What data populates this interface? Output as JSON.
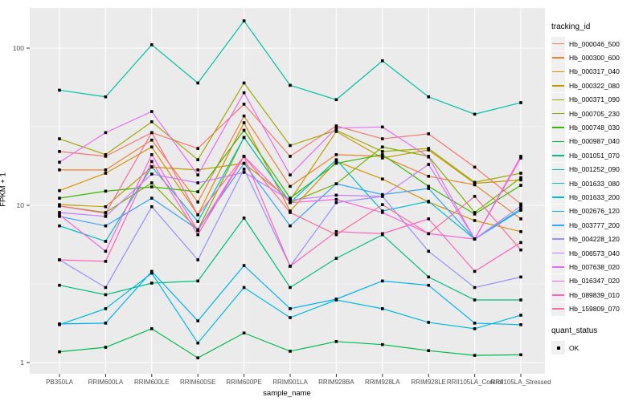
{
  "chart_data": {
    "type": "line",
    "title": "",
    "xlabel": "sample_name",
    "ylabel": "FPKM + 1",
    "y_scale": "log10",
    "y_ticks": [
      "1",
      "10",
      "100"
    ],
    "ylim": [
      0.85,
      180
    ],
    "grid": true,
    "legend_position": "right",
    "point_shape": "square",
    "point_color": "#000000",
    "categories": [
      "PB350LA",
      "RRIM600LA",
      "RRIM600LE",
      "RRIM600SE",
      "RRIM600PE",
      "RRIM901LA",
      "RRIM928BA",
      "RRIM928LA",
      "RRIM928LE",
      "RRII105LA_Control",
      "RRII105LA_Stressed"
    ],
    "legend": {
      "color_title": "tracking_id",
      "shape_title": "quant_status",
      "shape_items": [
        {
          "label": "OK",
          "shape": "square",
          "color": "#000000"
        }
      ]
    },
    "series": [
      {
        "name": "Hb_000046_500",
        "color": "#F8766D",
        "values": [
          22,
          20.5,
          29,
          23,
          44,
          20.5,
          32,
          26.5,
          28.5,
          17.5,
          10.2
        ]
      },
      {
        "name": "Hb_000300_600",
        "color": "#EA8331",
        "values": [
          16.8,
          16.8,
          26,
          10.5,
          37,
          13.2,
          21,
          20.5,
          15.3,
          13.5,
          8.2
        ]
      },
      {
        "name": "Hb_000317_040",
        "color": "#D89000",
        "values": [
          12.4,
          16,
          23.5,
          8.7,
          33.5,
          9.2,
          19,
          14.7,
          10.5,
          8.0,
          6.8
        ]
      },
      {
        "name": "Hb_000322_080",
        "color": "#C09B00",
        "values": [
          10.1,
          9.8,
          17.5,
          16.8,
          18.5,
          10.8,
          29.5,
          20,
          22.5,
          13.8,
          14.5
        ]
      },
      {
        "name": "Hb_000371_090",
        "color": "#A3A500",
        "values": [
          26.5,
          21,
          34,
          19.5,
          60,
          24,
          30,
          22,
          23,
          14,
          16
        ]
      },
      {
        "name": "Hb_000705_230",
        "color": "#7CAE00",
        "values": [
          9.9,
          9.0,
          13.9,
          7.0,
          27,
          10.4,
          13.7,
          23.5,
          20.5,
          9.0,
          15
        ]
      },
      {
        "name": "Hb_000748_030",
        "color": "#39B600",
        "values": [
          11.1,
          12.3,
          13.1,
          12.2,
          30,
          11.1,
          18.5,
          21,
          13.2,
          8.8,
          13.4
        ]
      },
      {
        "name": "Hb_000987_040",
        "color": "#00BB4E",
        "values": [
          1.17,
          1.25,
          1.64,
          1.07,
          1.54,
          1.18,
          1.36,
          1.3,
          1.19,
          1.11,
          1.12
        ]
      },
      {
        "name": "Hb_001051_070",
        "color": "#00BF7D",
        "values": [
          3.1,
          2.7,
          3.2,
          3.3,
          8.3,
          3.0,
          4.6,
          6.5,
          3.5,
          2.5,
          2.5
        ]
      },
      {
        "name": "Hb_001252_090",
        "color": "#00C1A3",
        "values": [
          54,
          49,
          105,
          60,
          149,
          58,
          47,
          83,
          49,
          38,
          45
        ]
      },
      {
        "name": "Hb_001633_080",
        "color": "#00BFC4",
        "values": [
          7.4,
          5.9,
          17.6,
          7.9,
          27,
          10.4,
          19.5,
          9.2,
          10.6,
          6.1,
          9.5
        ]
      },
      {
        "name": "Hb_001633_200",
        "color": "#00BADE",
        "values": [
          1.74,
          2.2,
          3.7,
          1.33,
          3.0,
          1.93,
          2.5,
          2.2,
          1.8,
          1.64,
          2.0
        ]
      },
      {
        "name": "Hb_002676_120",
        "color": "#00B0F6",
        "values": [
          1.76,
          1.78,
          3.8,
          1.84,
          4.14,
          2.2,
          2.53,
          3.3,
          3.1,
          1.78,
          1.74
        ]
      },
      {
        "name": "Hb_003777_200",
        "color": "#35A2FF",
        "values": [
          8.5,
          7.4,
          11.1,
          7.0,
          18.5,
          7.4,
          13.7,
          11.7,
          12.8,
          6.1,
          9.3
        ]
      },
      {
        "name": "Hb_004228_120",
        "color": "#9590FF",
        "values": [
          4.5,
          3.0,
          9.8,
          4.5,
          17,
          4.1,
          10.4,
          11.4,
          5.1,
          3.0,
          3.5
        ]
      },
      {
        "name": "Hb_006573_040",
        "color": "#C77CFF",
        "values": [
          9.0,
          8.5,
          15.8,
          13.9,
          16.2,
          10.8,
          11.6,
          11.4,
          18.2,
          6.1,
          9.9
        ]
      },
      {
        "name": "Hb_007638_020",
        "color": "#E76BF3",
        "values": [
          18.8,
          29,
          39.5,
          15.6,
          52,
          15.6,
          31,
          31.5,
          20.3,
          6.1,
          20.5
        ]
      },
      {
        "name": "Hb_016347_020",
        "color": "#FA62DB",
        "values": [
          8.7,
          5.1,
          21,
          6.9,
          20.5,
          10.4,
          10.9,
          9.0,
          6.6,
          6.1,
          20
        ]
      },
      {
        "name": "Hb_089839_010",
        "color": "#FF62BC",
        "values": [
          4.5,
          4.4,
          19,
          6.5,
          20.5,
          4.1,
          6.8,
          6.6,
          8.2,
          3.8,
          5.8
        ]
      },
      {
        "name": "Hb_159809_070",
        "color": "#FF6A98",
        "values": [
          9.9,
          8.9,
          29,
          8.7,
          20.5,
          9.0,
          6.5,
          10.1,
          6.6,
          11.4,
          5.2
        ]
      }
    ]
  },
  "theme": {
    "background": "#FFFFFF",
    "panel_background": "#EBEBEB",
    "grid_color": "#FFFFFF",
    "tick_label_color": "#4D4D4D",
    "tick_mark_color": "#333333",
    "axis_title_color": "#000000",
    "legend_key_background": "#F0F0F0"
  }
}
